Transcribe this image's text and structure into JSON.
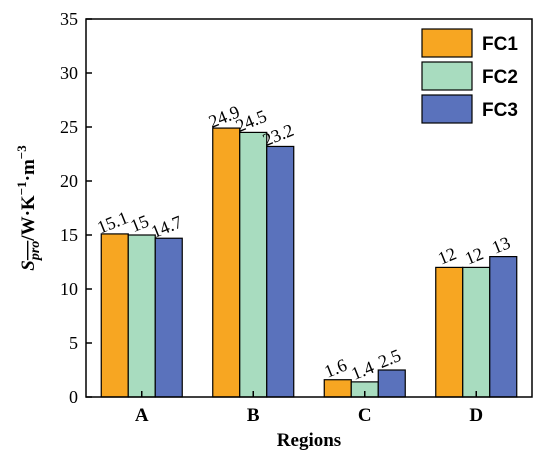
{
  "chart_data": {
    "type": "bar",
    "title": "",
    "xlabel": "Regions",
    "ylabel": {
      "symbol": "S",
      "subscript": "pro",
      "unit": "/W·K",
      "exp1": "−1",
      "unit2": "·m",
      "exp2": "−3"
    },
    "categories": [
      "A",
      "B",
      "C",
      "D"
    ],
    "ylim": [
      0,
      35
    ],
    "yticks": [
      0,
      5,
      10,
      15,
      20,
      25,
      30,
      35
    ],
    "legend_position": "top-right",
    "series": [
      {
        "name": "FC1",
        "color": "#F7A622",
        "values": [
          15.1,
          24.9,
          1.6,
          12
        ],
        "labels": [
          "15.1",
          "24.9",
          "1.6",
          "12"
        ]
      },
      {
        "name": "FC2",
        "color": "#A8DCBF",
        "values": [
          15,
          24.5,
          1.4,
          12
        ],
        "labels": [
          "15",
          "24.5",
          "1.4",
          "12"
        ]
      },
      {
        "name": "FC3",
        "color": "#5A72BC",
        "values": [
          14.7,
          23.2,
          2.5,
          13
        ],
        "labels": [
          "14.7",
          "23.2",
          "2.5",
          "13"
        ]
      }
    ]
  }
}
